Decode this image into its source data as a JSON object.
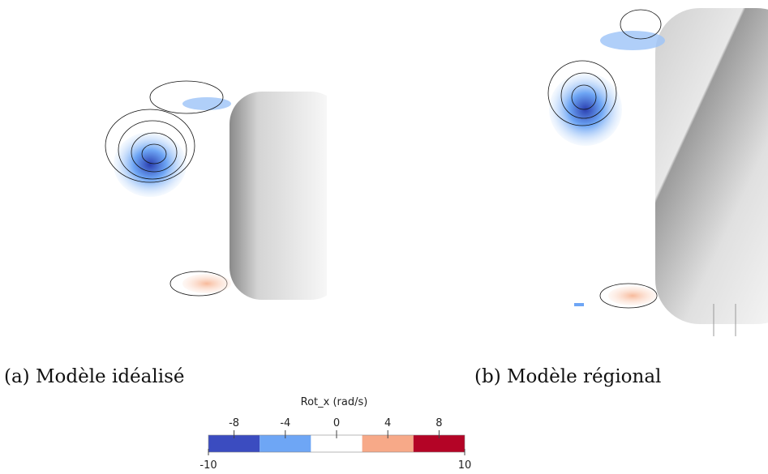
{
  "panels": [
    {
      "caption": "(a) Modèle idéalisé"
    },
    {
      "caption": "(b) Modèle régional"
    }
  ],
  "colorbar": {
    "title": "Rot_x (rad/s)",
    "lim": [
      -10,
      10
    ],
    "ticks": [
      -8,
      -4,
      0,
      4,
      8
    ],
    "bins": [
      -10,
      -6,
      -2,
      2,
      6,
      10
    ],
    "colors": [
      "#3b4cc0",
      "#6ea6f5",
      "#ffffff",
      "#f7a988",
      "#b40426"
    ]
  }
}
